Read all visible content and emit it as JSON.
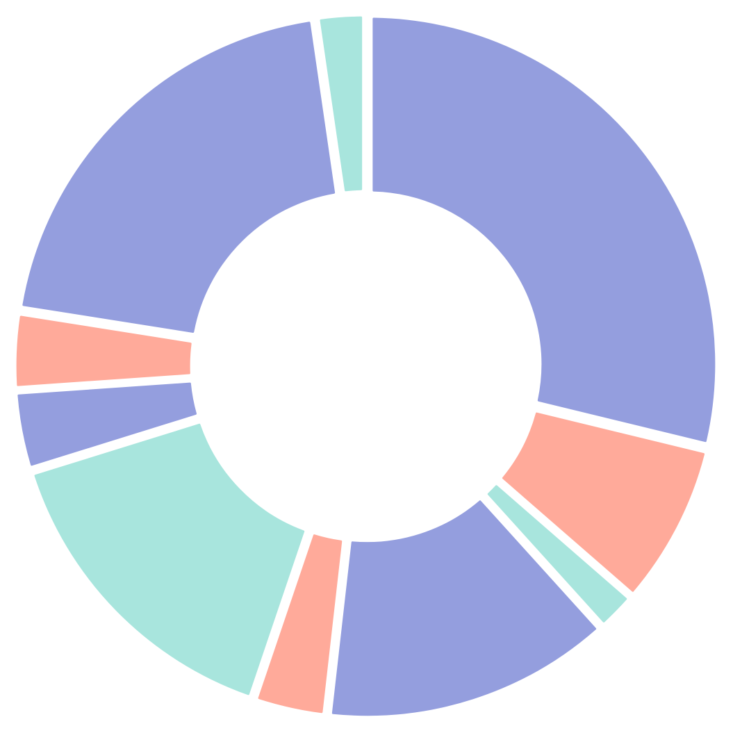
{
  "chart_data": {
    "type": "pie",
    "variant": "donut",
    "title": "",
    "legend": "none",
    "labels_shown": false,
    "colors": {
      "blue": "#949ede",
      "salmon": "#ffaa9a",
      "teal": "#a8e5dd"
    },
    "slices": [
      {
        "value": 28.8,
        "color": "blue"
      },
      {
        "value": 7.6,
        "color": "salmon"
      },
      {
        "value": 1.9,
        "color": "teal"
      },
      {
        "value": 13.5,
        "color": "blue"
      },
      {
        "value": 3.4,
        "color": "salmon"
      },
      {
        "value": 15.0,
        "color": "teal"
      },
      {
        "value": 3.7,
        "color": "blue"
      },
      {
        "value": 3.6,
        "color": "salmon"
      },
      {
        "value": 20.2,
        "color": "blue"
      },
      {
        "value": 2.3,
        "color": "teal"
      }
    ]
  }
}
